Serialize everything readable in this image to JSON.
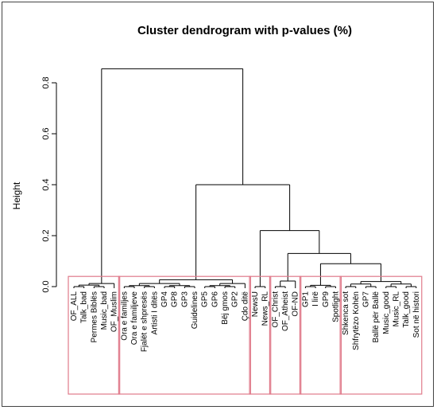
{
  "chart_data": {
    "type": "dendrogram",
    "title": "Cluster dendrogram with p-values (%)",
    "ylabel": "Height",
    "ylim": [
      0,
      0.85
    ],
    "yticks": [
      "0.0",
      "0.2",
      "0.4",
      "0.6",
      "0.8"
    ],
    "ytick_values": [
      0.0,
      0.2,
      0.4,
      0.6,
      0.8
    ],
    "leaves": [
      "OF_ALL",
      "Talk_bad",
      "Permes Biblës",
      "Music_bad",
      "OF_Muslim",
      "Ora e familjes",
      "Ora e familjeve",
      "Fjalët e shpresës",
      "Artisti I ditës",
      "GP4",
      "GP8",
      "GP3",
      "Guidelines",
      "GP5",
      "GP6",
      "Bëj gmos",
      "GP2",
      "Çdo ditë",
      "NewsU",
      "News_RL",
      "OF_Christ",
      "OF_Atheist",
      "OF-ND",
      "GP1",
      "I lirë",
      "GP9",
      "Spotlight",
      "Shkenca sot",
      "Shfrytëzo Kohën",
      "GP7",
      "Ballë për Ballë",
      "Music_good",
      "Music_RL",
      "Talk_good",
      "Sot në histori"
    ],
    "merges": [
      {
        "left": [
          0,
          1,
          2,
          3,
          4
        ],
        "height": 0.012
      },
      {
        "left": [
          5,
          6,
          7,
          8,
          9,
          10,
          11,
          12,
          13,
          14,
          15,
          16,
          17
        ],
        "height": 0.045
      },
      {
        "left": [
          18,
          19
        ],
        "height": 0.0
      },
      {
        "left": [
          20,
          21,
          22
        ],
        "height": 0.022
      },
      {
        "left": [
          23,
          24,
          25,
          26
        ],
        "height": 0.005
      },
      {
        "left": [
          27,
          28,
          29,
          30,
          31,
          32,
          33,
          34
        ],
        "height": 0.028
      },
      {
        "groups": [
          "cl4",
          "cl5"
        ],
        "height": 0.09
      },
      {
        "groups": [
          "cl3",
          "cl4+cl5"
        ],
        "height": 0.13
      },
      {
        "groups": [
          "cl2",
          "cl3+cl4+cl5"
        ],
        "height": 0.22
      },
      {
        "groups": [
          "cl1b",
          "rest"
        ],
        "height": 0.4
      },
      {
        "groups": [
          "cl0",
          "all"
        ],
        "height": 0.855
      }
    ],
    "clusters": [
      {
        "name": "",
        "leaf_range": [
          0,
          4
        ]
      },
      {
        "name": "",
        "leaf_range": [
          5,
          17
        ]
      },
      {
        "name": "",
        "leaf_range": [
          18,
          19
        ]
      },
      {
        "name": "",
        "leaf_range": [
          20,
          22
        ]
      },
      {
        "name": "",
        "leaf_range": [
          23,
          26
        ]
      },
      {
        "name": "",
        "leaf_range": [
          27,
          34
        ]
      }
    ],
    "cluster_box_color": "#e07a8a",
    "line_color": "#000000"
  }
}
